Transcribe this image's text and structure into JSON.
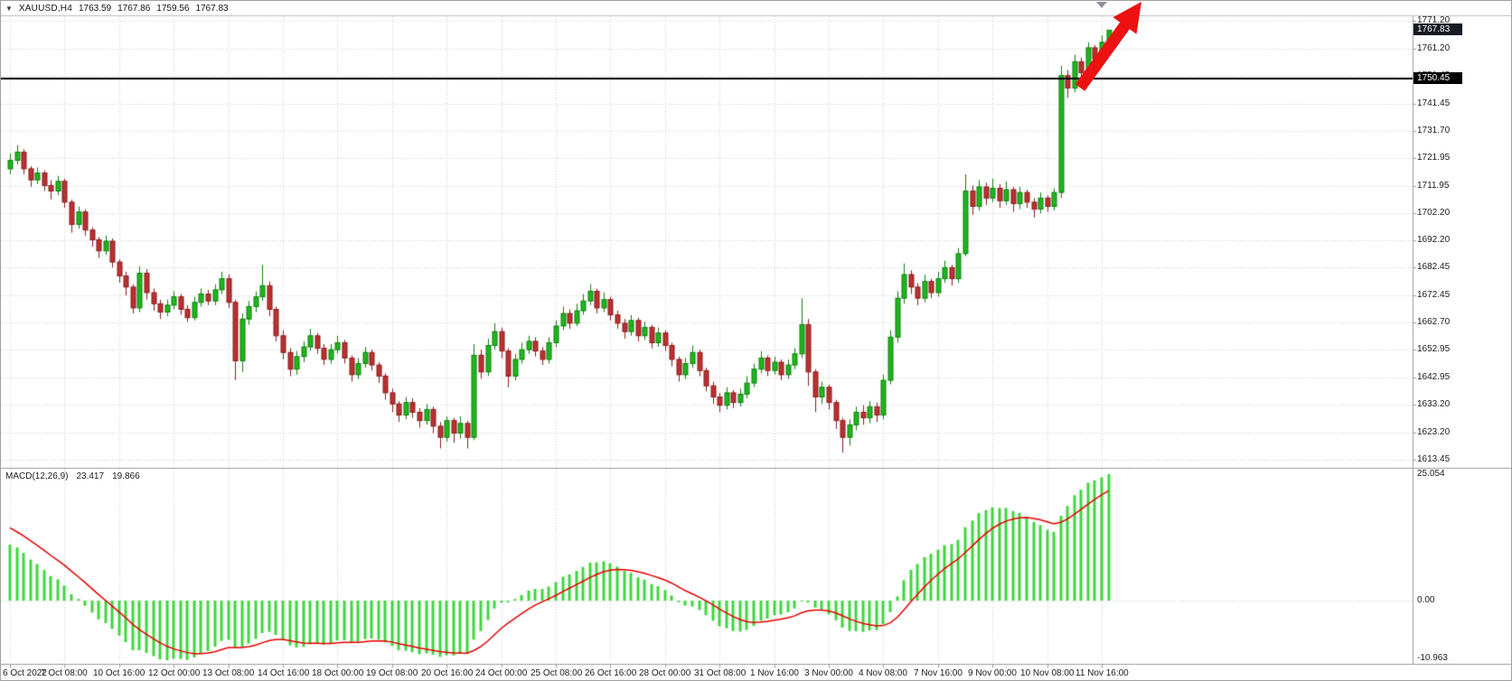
{
  "header": {
    "symbol_period": "XAUUSD,H4",
    "open": "1763.59",
    "high": "1767.86",
    "low": "1759.56",
    "close": "1767.83",
    "dropdown_icon": "▼"
  },
  "chart_data": {
    "type": "candlestick",
    "title": "XAUUSD,H4",
    "timeframe": "H4",
    "price_axis": {
      "max": 1771.2,
      "min": 1613.45,
      "labels": [
        1771.2,
        1761.2,
        1751.45,
        1741.45,
        1731.7,
        1721.95,
        1711.95,
        1702.2,
        1692.2,
        1682.45,
        1672.45,
        1662.7,
        1652.95,
        1642.95,
        1633.2,
        1623.2,
        1613.45
      ]
    },
    "time_axis": {
      "tick_every_bars": 8,
      "labels": [
        "6 Oct 2022",
        "7 Oct 08:00",
        "10 Oct 16:00",
        "12 Oct 00:00",
        "13 Oct 08:00",
        "14 Oct 16:00",
        "18 Oct 00:00",
        "19 Oct 08:00",
        "20 Oct 16:00",
        "24 Oct 00:00",
        "25 Oct 08:00",
        "26 Oct 16:00",
        "28 Oct 00:00",
        "31 Oct 08:00",
        "1 Nov 16:00",
        "3 Nov 00:00",
        "4 Nov 08:00",
        "7 Nov 16:00",
        "9 Nov 00:00",
        "10 Nov 08:00",
        "11 Nov 16:00"
      ]
    },
    "candles": [
      [
        1718.0,
        1723.5,
        1716.0,
        1721.0
      ],
      [
        1721.0,
        1726.5,
        1719.5,
        1724.0
      ],
      [
        1724.0,
        1725.0,
        1716.0,
        1718.0
      ],
      [
        1718.0,
        1719.0,
        1711.5,
        1714.0
      ],
      [
        1714.0,
        1718.5,
        1712.5,
        1716.5
      ],
      [
        1716.5,
        1717.5,
        1710.0,
        1712.0
      ],
      [
        1712.0,
        1714.0,
        1707.0,
        1710.0
      ],
      [
        1710.0,
        1715.5,
        1708.5,
        1713.5
      ],
      [
        1713.5,
        1714.5,
        1704.0,
        1706.0
      ],
      [
        1706.0,
        1707.0,
        1695.0,
        1698.0
      ],
      [
        1698.0,
        1704.5,
        1696.5,
        1702.5
      ],
      [
        1702.5,
        1703.5,
        1694.0,
        1696.0
      ],
      [
        1696.0,
        1697.0,
        1690.0,
        1692.5
      ],
      [
        1692.5,
        1693.5,
        1686.0,
        1688.5
      ],
      [
        1688.5,
        1694.0,
        1687.0,
        1692.0
      ],
      [
        1692.0,
        1693.0,
        1682.5,
        1684.5
      ],
      [
        1684.5,
        1685.5,
        1677.0,
        1679.5
      ],
      [
        1679.5,
        1681.0,
        1672.5,
        1675.5
      ],
      [
        1675.5,
        1676.5,
        1666.0,
        1668.0
      ],
      [
        1668.0,
        1683.0,
        1666.5,
        1680.5
      ],
      [
        1680.5,
        1682.0,
        1671.0,
        1673.5
      ],
      [
        1673.5,
        1675.0,
        1667.0,
        1669.5
      ],
      [
        1669.5,
        1671.0,
        1664.0,
        1666.5
      ],
      [
        1666.5,
        1671.0,
        1665.0,
        1669.0
      ],
      [
        1669.0,
        1674.0,
        1667.5,
        1672.0
      ],
      [
        1672.0,
        1673.0,
        1665.5,
        1667.5
      ],
      [
        1667.5,
        1669.0,
        1663.0,
        1664.5
      ],
      [
        1664.5,
        1672.0,
        1663.5,
        1670.0
      ],
      [
        1670.0,
        1675.0,
        1668.5,
        1673.0
      ],
      [
        1673.0,
        1674.5,
        1669.0,
        1670.5
      ],
      [
        1670.5,
        1676.5,
        1669.0,
        1674.5
      ],
      [
        1674.5,
        1681.0,
        1673.0,
        1678.5
      ],
      [
        1678.5,
        1680.0,
        1668.0,
        1670.0
      ],
      [
        1670.0,
        1671.0,
        1642.0,
        1649.0
      ],
      [
        1649.0,
        1666.0,
        1645.0,
        1664.0
      ],
      [
        1664.0,
        1670.5,
        1662.0,
        1668.5
      ],
      [
        1668.5,
        1674.0,
        1666.5,
        1672.0
      ],
      [
        1672.0,
        1683.5,
        1670.5,
        1676.0
      ],
      [
        1676.0,
        1677.5,
        1665.0,
        1667.5
      ],
      [
        1667.5,
        1668.5,
        1656.0,
        1658.0
      ],
      [
        1658.0,
        1660.0,
        1649.5,
        1652.0
      ],
      [
        1652.0,
        1653.5,
        1643.5,
        1646.0
      ],
      [
        1646.0,
        1652.5,
        1644.0,
        1650.5
      ],
      [
        1650.5,
        1656.0,
        1648.5,
        1654.0
      ],
      [
        1654.0,
        1660.5,
        1652.5,
        1658.0
      ],
      [
        1658.0,
        1659.0,
        1651.5,
        1653.5
      ],
      [
        1653.5,
        1655.0,
        1647.5,
        1649.5
      ],
      [
        1649.5,
        1655.0,
        1648.0,
        1653.0
      ],
      [
        1653.0,
        1658.0,
        1651.5,
        1655.5
      ],
      [
        1655.5,
        1656.5,
        1648.0,
        1650.0
      ],
      [
        1650.0,
        1651.0,
        1641.5,
        1644.0
      ],
      [
        1644.0,
        1650.0,
        1642.5,
        1648.0
      ],
      [
        1648.0,
        1654.0,
        1646.5,
        1652.0
      ],
      [
        1652.0,
        1653.0,
        1645.5,
        1647.5
      ],
      [
        1647.5,
        1648.5,
        1641.0,
        1643.5
      ],
      [
        1643.5,
        1644.5,
        1635.0,
        1637.5
      ],
      [
        1637.5,
        1639.0,
        1630.5,
        1633.5
      ],
      [
        1633.5,
        1634.5,
        1627.0,
        1629.5
      ],
      [
        1629.5,
        1636.0,
        1628.0,
        1634.0
      ],
      [
        1634.0,
        1635.5,
        1628.5,
        1630.5
      ],
      [
        1630.5,
        1632.0,
        1625.0,
        1627.5
      ],
      [
        1627.5,
        1633.5,
        1626.0,
        1631.5
      ],
      [
        1631.5,
        1632.5,
        1623.0,
        1625.5
      ],
      [
        1625.5,
        1627.0,
        1617.5,
        1621.5
      ],
      [
        1621.5,
        1629.0,
        1620.0,
        1627.5
      ],
      [
        1627.5,
        1628.5,
        1619.5,
        1623.0
      ],
      [
        1623.0,
        1629.0,
        1621.0,
        1626.5
      ],
      [
        1626.5,
        1627.5,
        1617.5,
        1621.5
      ],
      [
        1621.5,
        1655.0,
        1620.5,
        1651.0
      ],
      [
        1651.0,
        1653.0,
        1642.5,
        1645.0
      ],
      [
        1645.0,
        1657.0,
        1643.5,
        1654.5
      ],
      [
        1654.5,
        1662.5,
        1653.0,
        1659.5
      ],
      [
        1659.5,
        1661.0,
        1650.0,
        1652.5
      ],
      [
        1652.5,
        1653.5,
        1639.5,
        1643.5
      ],
      [
        1643.5,
        1651.5,
        1642.0,
        1649.5
      ],
      [
        1649.5,
        1655.5,
        1648.0,
        1653.0
      ],
      [
        1653.0,
        1658.0,
        1651.5,
        1656.0
      ],
      [
        1656.0,
        1657.5,
        1650.5,
        1652.5
      ],
      [
        1652.5,
        1654.0,
        1647.5,
        1649.5
      ],
      [
        1649.5,
        1657.5,
        1648.0,
        1655.5
      ],
      [
        1655.5,
        1663.5,
        1654.0,
        1661.5
      ],
      [
        1661.5,
        1668.5,
        1660.0,
        1666.0
      ],
      [
        1666.0,
        1667.5,
        1660.5,
        1662.5
      ],
      [
        1662.5,
        1669.5,
        1661.5,
        1667.0
      ],
      [
        1667.0,
        1673.0,
        1665.5,
        1670.5
      ],
      [
        1670.5,
        1676.5,
        1669.0,
        1674.0
      ],
      [
        1674.0,
        1675.0,
        1666.0,
        1668.0
      ],
      [
        1668.0,
        1673.5,
        1666.5,
        1671.0
      ],
      [
        1671.0,
        1672.0,
        1663.5,
        1665.5
      ],
      [
        1665.5,
        1667.0,
        1660.5,
        1662.5
      ],
      [
        1662.5,
        1664.0,
        1657.0,
        1659.5
      ],
      [
        1659.5,
        1665.5,
        1658.0,
        1663.5
      ],
      [
        1663.5,
        1664.5,
        1656.0,
        1658.0
      ],
      [
        1658.0,
        1663.0,
        1656.5,
        1661.0
      ],
      [
        1661.0,
        1662.0,
        1653.5,
        1655.5
      ],
      [
        1655.5,
        1661.0,
        1654.0,
        1659.0
      ],
      [
        1659.0,
        1660.0,
        1652.5,
        1654.5
      ],
      [
        1654.5,
        1655.5,
        1647.0,
        1649.5
      ],
      [
        1649.5,
        1650.5,
        1641.5,
        1644.0
      ],
      [
        1644.0,
        1650.0,
        1642.5,
        1648.0
      ],
      [
        1648.0,
        1654.5,
        1646.5,
        1652.0
      ],
      [
        1652.0,
        1653.0,
        1643.5,
        1645.5
      ],
      [
        1645.5,
        1646.5,
        1638.0,
        1640.0
      ],
      [
        1640.0,
        1641.5,
        1633.5,
        1636.0
      ],
      [
        1636.0,
        1637.5,
        1630.5,
        1633.0
      ],
      [
        1633.0,
        1639.5,
        1631.5,
        1637.5
      ],
      [
        1637.5,
        1638.5,
        1632.0,
        1634.0
      ],
      [
        1634.0,
        1639.0,
        1632.5,
        1637.0
      ],
      [
        1637.0,
        1643.5,
        1635.5,
        1641.0
      ],
      [
        1641.0,
        1648.0,
        1639.5,
        1646.0
      ],
      [
        1646.0,
        1652.5,
        1644.5,
        1650.0
      ],
      [
        1650.0,
        1651.0,
        1643.5,
        1645.5
      ],
      [
        1645.5,
        1650.5,
        1644.0,
        1648.5
      ],
      [
        1648.5,
        1649.5,
        1642.0,
        1644.0
      ],
      [
        1644.0,
        1649.5,
        1642.5,
        1647.5
      ],
      [
        1647.5,
        1653.5,
        1646.0,
        1651.5
      ],
      [
        1651.5,
        1671.5,
        1650.0,
        1662.0
      ],
      [
        1662.0,
        1664.0,
        1640.0,
        1645.0
      ],
      [
        1645.0,
        1646.0,
        1630.5,
        1636.0
      ],
      [
        1636.0,
        1641.5,
        1633.5,
        1639.5
      ],
      [
        1639.5,
        1640.5,
        1631.5,
        1634.0
      ],
      [
        1634.0,
        1635.0,
        1624.5,
        1627.5
      ],
      [
        1627.5,
        1628.5,
        1616.0,
        1621.5
      ],
      [
        1621.5,
        1628.0,
        1618.5,
        1626.0
      ],
      [
        1626.0,
        1632.5,
        1624.0,
        1630.5
      ],
      [
        1630.5,
        1633.0,
        1626.0,
        1628.5
      ],
      [
        1628.5,
        1634.5,
        1626.5,
        1632.5
      ],
      [
        1632.5,
        1634.0,
        1627.0,
        1629.5
      ],
      [
        1629.5,
        1644.0,
        1628.0,
        1642.0
      ],
      [
        1642.0,
        1660.0,
        1640.5,
        1657.5
      ],
      [
        1657.5,
        1674.0,
        1655.5,
        1671.5
      ],
      [
        1671.5,
        1684.0,
        1669.5,
        1680.0
      ],
      [
        1680.0,
        1681.5,
        1673.0,
        1675.5
      ],
      [
        1675.5,
        1677.0,
        1669.0,
        1671.5
      ],
      [
        1671.5,
        1680.0,
        1670.0,
        1677.5
      ],
      [
        1677.5,
        1678.5,
        1671.5,
        1673.5
      ],
      [
        1673.5,
        1681.0,
        1672.0,
        1678.5
      ],
      [
        1678.5,
        1685.0,
        1677.0,
        1682.5
      ],
      [
        1682.5,
        1683.5,
        1676.0,
        1678.5
      ],
      [
        1678.5,
        1689.5,
        1677.0,
        1687.5
      ],
      [
        1687.5,
        1716.0,
        1686.5,
        1710.0
      ],
      [
        1710.0,
        1712.0,
        1701.5,
        1704.5
      ],
      [
        1704.5,
        1714.0,
        1703.0,
        1711.5
      ],
      [
        1711.5,
        1713.0,
        1705.0,
        1707.5
      ],
      [
        1707.5,
        1714.5,
        1706.0,
        1711.0
      ],
      [
        1711.0,
        1712.5,
        1704.0,
        1706.5
      ],
      [
        1706.5,
        1713.5,
        1705.0,
        1710.5
      ],
      [
        1710.5,
        1711.5,
        1702.5,
        1705.5
      ],
      [
        1705.5,
        1711.5,
        1703.5,
        1709.5
      ],
      [
        1709.5,
        1710.5,
        1704.0,
        1706.0
      ],
      [
        1706.0,
        1707.5,
        1700.5,
        1703.5
      ],
      [
        1703.5,
        1709.5,
        1702.0,
        1707.5
      ],
      [
        1707.5,
        1708.5,
        1702.5,
        1704.5
      ],
      [
        1704.5,
        1711.0,
        1703.0,
        1709.5
      ],
      [
        1709.5,
        1755.0,
        1707.5,
        1751.5
      ],
      [
        1751.5,
        1753.5,
        1743.5,
        1747.0
      ],
      [
        1747.0,
        1759.0,
        1745.5,
        1756.5
      ],
      [
        1756.5,
        1758.0,
        1748.5,
        1752.5
      ],
      [
        1752.5,
        1763.5,
        1751.0,
        1761.5
      ],
      [
        1761.5,
        1762.5,
        1753.5,
        1757.5
      ],
      [
        1757.5,
        1766.0,
        1756.0,
        1763.5
      ],
      [
        1763.59,
        1767.86,
        1759.56,
        1767.83
      ]
    ],
    "indicator": {
      "title": "MACD(12,26,9)",
      "value_main": "23.417",
      "value_signal": "19.866",
      "axis_labels": [
        "25.054",
        "0.00",
        "-10.963"
      ],
      "params": {
        "fast": 12,
        "slow": 26,
        "signal": 9,
        "macd_seed": 10,
        "signal_seed": 13
      }
    }
  },
  "annotations": {
    "hline": {
      "price": 1750.45,
      "label": "1750.45"
    },
    "current_price": {
      "price": 1767.83,
      "label": "1767.83"
    },
    "arrow": {
      "type": "up-trend-arrow",
      "color": "#ee1111"
    }
  },
  "colors": {
    "up": "#1db51d",
    "up_border": "#0f820f",
    "down": "#bb3030",
    "down_border": "#8a1f1f",
    "macd_hist": "#3fd83f",
    "macd_signal": "#e80000",
    "grid": "#cdcdcd",
    "border": "#9b9b9b",
    "hline": "#000000",
    "tag_current_bg": "#171b24",
    "tag_hline_bg": "#000000",
    "marker": "#8c93a0",
    "text": "#1b1b1b"
  }
}
